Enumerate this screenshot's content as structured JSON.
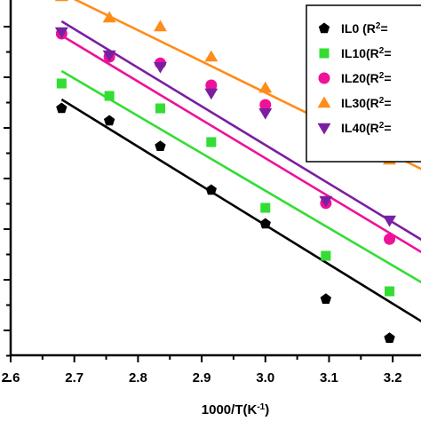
{
  "chart_data": {
    "type": "scatter",
    "xlabel": "1000/T(K",
    "xlabel_sup": "-1",
    "xlabel_end": ")",
    "xlim": [
      2.6,
      3.25
    ],
    "x_ticks": [
      "2.6",
      "2.7",
      "2.8",
      "2.9",
      "3.0",
      "3.1",
      "3.2"
    ],
    "ylim": [
      0,
      1
    ],
    "y_tick_count": 8,
    "grid": false,
    "legend_position": "top-right",
    "series": [
      {
        "name": "IL0",
        "label": "IL0  (R",
        "sup": "2",
        "after": "=",
        "color": "#000000",
        "marker": "pentagon",
        "x": [
          2.68,
          2.755,
          2.835,
          2.915,
          3.0,
          3.095,
          3.195
        ],
        "y": [
          0.695,
          0.66,
          0.588,
          0.465,
          0.37,
          0.158,
          0.048
        ],
        "fit": [
          [
            2.68,
            0.72
          ],
          [
            3.25,
            0.09
          ]
        ]
      },
      {
        "name": "IL10",
        "label": "IL10(R",
        "sup": "2",
        "after": "=",
        "color": "#33dd33",
        "marker": "square",
        "x": [
          2.68,
          2.755,
          2.835,
          2.915,
          3.0,
          3.095,
          3.195
        ],
        "y": [
          0.765,
          0.73,
          0.695,
          0.6,
          0.415,
          0.28,
          0.18
        ],
        "fit": [
          [
            2.68,
            0.8
          ],
          [
            3.25,
            0.2
          ]
        ]
      },
      {
        "name": "IL20",
        "label": "IL20(R",
        "sup": "2",
        "after": "=",
        "color": "#ee1199",
        "marker": "circle",
        "x": [
          2.68,
          2.755,
          2.835,
          2.915,
          3.0,
          3.095,
          3.195
        ],
        "y": [
          0.905,
          0.84,
          0.822,
          0.76,
          0.705,
          0.428,
          0.327
        ],
        "fit": [
          [
            2.68,
            0.9
          ],
          [
            3.25,
            0.285
          ]
        ]
      },
      {
        "name": "IL30",
        "label": "IL30(R",
        "sup": "2",
        "after": "=",
        "color": "#ff8c1a",
        "marker": "triangle-up",
        "x": [
          2.68,
          2.755,
          2.835,
          2.915,
          3.0,
          3.095,
          3.195
        ],
        "y": [
          1.01,
          0.95,
          0.925,
          0.84,
          0.752,
          0.655,
          0.55
        ],
        "fit": [
          [
            2.68,
            1.02
          ],
          [
            3.25,
            0.52
          ]
        ]
      },
      {
        "name": "IL40",
        "label": "IL40(R",
        "sup": "2",
        "after": "=",
        "color": "#7a1fa2",
        "marker": "triangle-down",
        "x": [
          2.68,
          2.755,
          2.835,
          2.915,
          3.0,
          3.095,
          3.195
        ],
        "y": [
          0.91,
          0.845,
          0.812,
          0.738,
          0.682,
          0.435,
          0.38
        ],
        "fit": [
          [
            2.68,
            0.94
          ],
          [
            3.25,
            0.32
          ]
        ]
      }
    ]
  }
}
